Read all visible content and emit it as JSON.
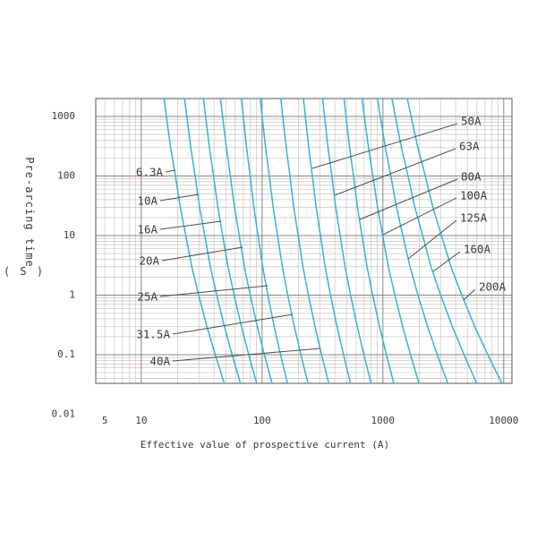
{
  "chart_data": {
    "type": "line",
    "title": "",
    "x_scale": "log",
    "y_scale": "log",
    "xlabel": "Effective value of prospective current (A)",
    "ylabel": "Pre-arcing time",
    "ylabel_unit": "( S )",
    "x_tick_labels": [
      "5",
      "10",
      "100",
      "1000",
      "10000"
    ],
    "x_tick_values": [
      5,
      10,
      100,
      1000,
      10000
    ],
    "y_tick_labels": [
      "1000",
      "100",
      "10",
      "1",
      "0.1",
      "0.01"
    ],
    "y_tick_values": [
      1000,
      100,
      10,
      1,
      0.1,
      0.01
    ],
    "x_range": [
      4.2,
      11700
    ],
    "y_range": [
      0.033,
      2000
    ],
    "grid": "log-log, minor lines every 1..9 per decade, darker lines at powers of 10",
    "legend_position": "curve labels with leader lines, 6.3A-40A on left, 50A-200A on right",
    "series": [
      {
        "name": "6.3A",
        "amps_at_2000s": 15.4,
        "amps_at_0_033s": 48.6
      },
      {
        "name": "10A",
        "amps_at_2000s": 22.8,
        "amps_at_0_033s": 66.2
      },
      {
        "name": "16A",
        "amps_at_2000s": 32.7,
        "amps_at_0_033s": 90.2
      },
      {
        "name": "20A",
        "amps_at_2000s": 45.3,
        "amps_at_0_033s": 121
      },
      {
        "name": "25A",
        "amps_at_2000s": 67.4,
        "amps_at_0_033s": 162
      },
      {
        "name": "31.5A",
        "amps_at_2000s": 96.6,
        "amps_at_0_033s": 240
      },
      {
        "name": "40A",
        "amps_at_2000s": 143,
        "amps_at_0_033s": 356
      },
      {
        "name": "50A",
        "amps_at_2000s": 220,
        "amps_at_0_033s": 539
      },
      {
        "name": "63A",
        "amps_at_2000s": 317,
        "amps_at_0_033s": 800
      },
      {
        "name": "80A",
        "amps_at_2000s": 477,
        "amps_at_0_033s": 1230
      },
      {
        "name": "100A",
        "amps_at_2000s": 673,
        "amps_at_0_033s": 1989
      },
      {
        "name": "125A",
        "amps_at_2000s": 902,
        "amps_at_0_033s": 3445
      },
      {
        "name": "160A",
        "amps_at_2000s": 1188,
        "amps_at_0_033s": 5970
      },
      {
        "name": "200A",
        "amps_at_2000s": 1592,
        "amps_at_0_033s": 9663
      }
    ],
    "curve_profile": {
      "time_s": [
        2000,
        1000,
        300,
        100,
        30,
        10,
        3,
        1,
        0.3,
        0.1,
        0.033
      ],
      "frac_of_log_current_span": [
        0,
        0.04,
        0.112,
        0.19,
        0.27,
        0.362,
        0.462,
        0.576,
        0.712,
        0.851,
        1
      ]
    },
    "colors": {
      "curve": "#2fb5da",
      "grid_minor": "#c3bab4",
      "grid_major": "#8b8682",
      "border": "#76716d",
      "pointer": "#4c4c4c",
      "text": "#3b3b3b",
      "background": "#ffffff"
    }
  }
}
